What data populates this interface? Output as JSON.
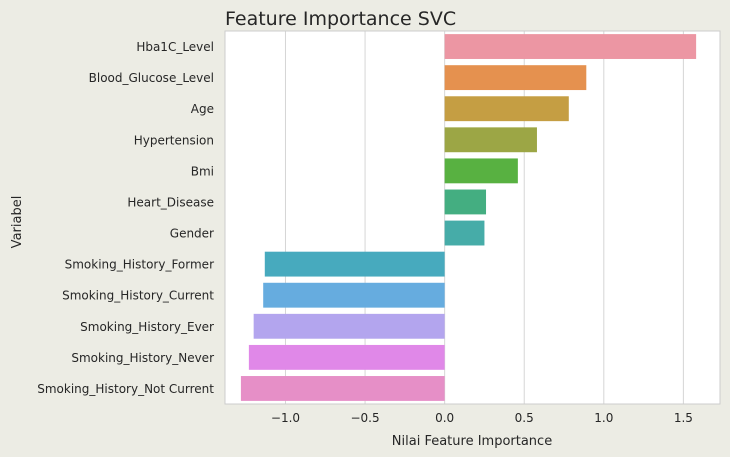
{
  "chart_data": {
    "type": "bar",
    "orientation": "horizontal",
    "title": "Feature Importance SVC",
    "xlabel": "Nilai Feature Importance",
    "ylabel": "Variabel",
    "xlim": [
      -1.38,
      1.73
    ],
    "xticks": [
      -1.0,
      -0.5,
      0.0,
      0.5,
      1.0,
      1.5
    ],
    "xtick_labels": [
      "−1.0",
      "−0.5",
      "0.0",
      "0.5",
      "1.0",
      "1.5"
    ],
    "grid": "vertical",
    "categories": [
      "Hba1C_Level",
      "Blood_Glucose_Level",
      "Age",
      "Hypertension",
      "Bmi",
      "Heart_Disease",
      "Gender",
      "Smoking_History_Former",
      "Smoking_History_Current",
      "Smoking_History_Ever",
      "Smoking_History_Never",
      "Smoking_History_Not Current"
    ],
    "values": [
      1.58,
      0.89,
      0.78,
      0.58,
      0.46,
      0.26,
      0.25,
      -1.13,
      -1.14,
      -1.2,
      -1.23,
      -1.28
    ],
    "colors": [
      "#ec96a3",
      "#e5914f",
      "#c59e43",
      "#9ca645",
      "#58b141",
      "#44ae81",
      "#46aca8",
      "#47aabe",
      "#66acdf",
      "#b3a5ee",
      "#e088e8",
      "#e68fc7"
    ]
  }
}
